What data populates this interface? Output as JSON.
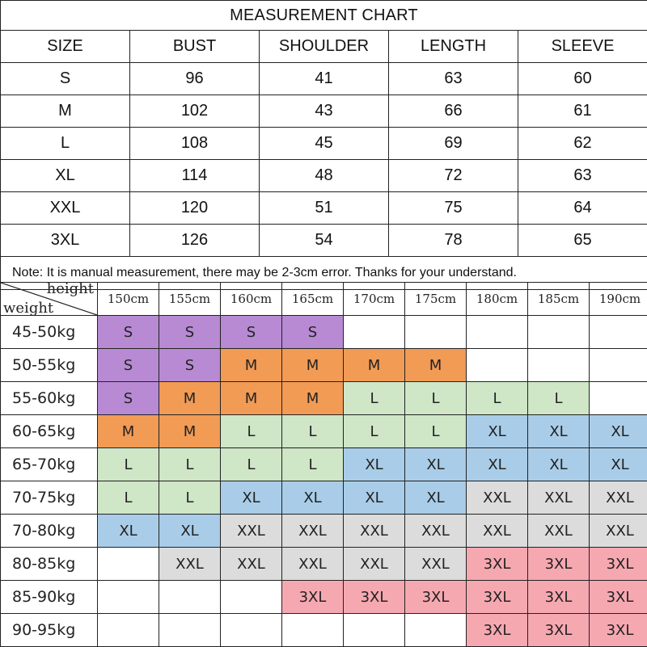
{
  "measurement": {
    "title": "MEASUREMENT CHART",
    "headers": [
      "SIZE",
      "BUST",
      "SHOULDER",
      "LENGTH",
      "SLEEVE"
    ],
    "rows": [
      [
        "S",
        "96",
        "41",
        "63",
        "60"
      ],
      [
        "M",
        "102",
        "43",
        "66",
        "61"
      ],
      [
        "L",
        "108",
        "45",
        "69",
        "62"
      ],
      [
        "XL",
        "114",
        "48",
        "72",
        "63"
      ],
      [
        "XXL",
        "120",
        "51",
        "75",
        "64"
      ],
      [
        "3XL",
        "126",
        "54",
        "78",
        "65"
      ]
    ],
    "note": "Note: It is manual measurement, there may be 2-3cm error. Thanks for your understand."
  },
  "size_grid": {
    "corner_height_label": "height",
    "corner_weight_label": "weight",
    "heights": [
      "150cm",
      "155cm",
      "160cm",
      "165cm",
      "170cm",
      "175cm",
      "180cm",
      "185cm",
      "190cm"
    ],
    "colors": {
      "S": "#b78ad3",
      "M": "#f29b55",
      "L": "#cfe6c7",
      "XL": "#a9cde8",
      "XXL": "#dcdcdc",
      "3XL": "#f6a8b1",
      "empty": "#ffffff"
    },
    "rows": [
      {
        "weight": "45-50kg",
        "sizes": [
          "S",
          "S",
          "S",
          "S",
          "",
          "",
          "",
          "",
          ""
        ]
      },
      {
        "weight": "50-55kg",
        "sizes": [
          "S",
          "S",
          "M",
          "M",
          "M",
          "M",
          "",
          "",
          ""
        ]
      },
      {
        "weight": "55-60kg",
        "sizes": [
          "S",
          "M",
          "M",
          "M",
          "L",
          "L",
          "L",
          "L",
          ""
        ]
      },
      {
        "weight": "60-65kg",
        "sizes": [
          "M",
          "M",
          "L",
          "L",
          "L",
          "L",
          "XL",
          "XL",
          "XL"
        ]
      },
      {
        "weight": "65-70kg",
        "sizes": [
          "L",
          "L",
          "L",
          "L",
          "XL",
          "XL",
          "XL",
          "XL",
          "XL"
        ]
      },
      {
        "weight": "70-75kg",
        "sizes": [
          "L",
          "L",
          "XL",
          "XL",
          "XL",
          "XL",
          "XXL",
          "XXL",
          "XXL"
        ]
      },
      {
        "weight": "70-80kg",
        "sizes": [
          "XL",
          "XL",
          "XXL",
          "XXL",
          "XXL",
          "XXL",
          "XXL",
          "XXL",
          "XXL"
        ]
      },
      {
        "weight": "80-85kg",
        "sizes": [
          "",
          "XXL",
          "XXL",
          "XXL",
          "XXL",
          "XXL",
          "3XL",
          "3XL",
          "3XL"
        ]
      },
      {
        "weight": "85-90kg",
        "sizes": [
          "",
          "",
          "",
          "3XL",
          "3XL",
          "3XL",
          "3XL",
          "3XL",
          "3XL"
        ]
      },
      {
        "weight": "90-95kg",
        "sizes": [
          "",
          "",
          "",
          "",
          "",
          "",
          "3XL",
          "3XL",
          "3XL"
        ]
      }
    ]
  }
}
